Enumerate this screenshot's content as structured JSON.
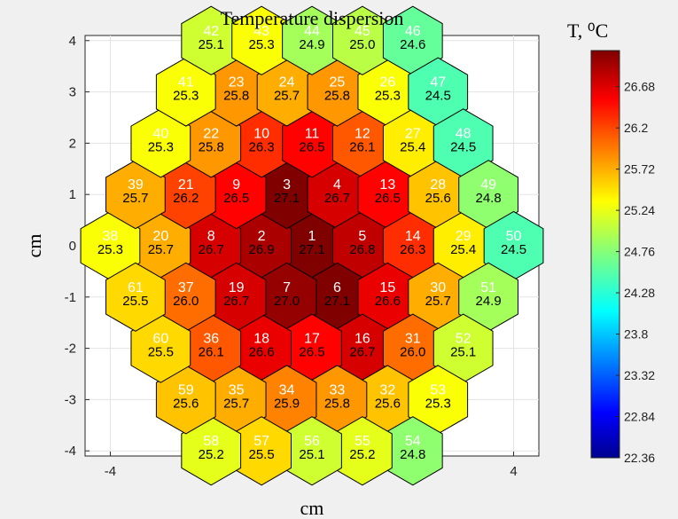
{
  "chart_data": {
    "type": "heatmap",
    "title": "Temperature dispersion",
    "xlabel": "cm",
    "ylabel": "cm",
    "xlim": [
      -4.5,
      4.5
    ],
    "ylim": [
      -4.1,
      4.1
    ],
    "xticks": [
      -4,
      -2,
      0,
      2,
      4
    ],
    "yticks": [
      -4,
      -3,
      -2,
      -1,
      0,
      1,
      2,
      3,
      4
    ],
    "grid": true,
    "colorbar": {
      "title": "T, ⁰C",
      "min": 22.36,
      "max": 27.1,
      "ticks": [
        "22.36",
        "22.84",
        "23.32",
        "23.8",
        "24.28",
        "24.76",
        "25.24",
        "25.72",
        "26.2",
        "26.68"
      ],
      "colormap": "jet"
    },
    "cells": [
      {
        "id": "1",
        "x": 0,
        "y": 0,
        "value": "27.1"
      },
      {
        "id": "2",
        "x": -1,
        "y": 0,
        "value": "26.9"
      },
      {
        "id": "3",
        "x": -0.5,
        "y": 1,
        "value": "27.1"
      },
      {
        "id": "4",
        "x": 0.5,
        "y": 1,
        "value": "26.7"
      },
      {
        "id": "5",
        "x": 1,
        "y": 0,
        "value": "26.8"
      },
      {
        "id": "6",
        "x": 0.5,
        "y": -1,
        "value": "27.1"
      },
      {
        "id": "7",
        "x": -0.5,
        "y": -1,
        "value": "27.0"
      },
      {
        "id": "8",
        "x": -2,
        "y": 0,
        "value": "26.7"
      },
      {
        "id": "9",
        "x": -1.5,
        "y": 1,
        "value": "26.5"
      },
      {
        "id": "10",
        "x": -1,
        "y": 2,
        "value": "26.3"
      },
      {
        "id": "11",
        "x": 0,
        "y": 2,
        "value": "26.5"
      },
      {
        "id": "12",
        "x": 1,
        "y": 2,
        "value": "26.1"
      },
      {
        "id": "13",
        "x": 1.5,
        "y": 1,
        "value": "26.5"
      },
      {
        "id": "14",
        "x": 2,
        "y": 0,
        "value": "26.3"
      },
      {
        "id": "15",
        "x": 1.5,
        "y": -1,
        "value": "26.6"
      },
      {
        "id": "16",
        "x": 1,
        "y": -2,
        "value": "26.7"
      },
      {
        "id": "17",
        "x": 0,
        "y": -2,
        "value": "26.5"
      },
      {
        "id": "18",
        "x": -1,
        "y": -2,
        "value": "26.6"
      },
      {
        "id": "19",
        "x": -1.5,
        "y": -1,
        "value": "26.7"
      },
      {
        "id": "20",
        "x": -3,
        "y": 0,
        "value": "25.7"
      },
      {
        "id": "21",
        "x": -2.5,
        "y": 1,
        "value": "26.2"
      },
      {
        "id": "22",
        "x": -2,
        "y": 2,
        "value": "25.8"
      },
      {
        "id": "23",
        "x": -1.5,
        "y": 3,
        "value": "25.8"
      },
      {
        "id": "24",
        "x": -0.5,
        "y": 3,
        "value": "25.7"
      },
      {
        "id": "25",
        "x": 0.5,
        "y": 3,
        "value": "25.8"
      },
      {
        "id": "26",
        "x": 1.5,
        "y": 3,
        "value": "25.3"
      },
      {
        "id": "27",
        "x": 2,
        "y": 2,
        "value": "25.4"
      },
      {
        "id": "28",
        "x": 2.5,
        "y": 1,
        "value": "25.6"
      },
      {
        "id": "29",
        "x": 3,
        "y": 0,
        "value": "25.4"
      },
      {
        "id": "30",
        "x": 2.5,
        "y": -1,
        "value": "25.7"
      },
      {
        "id": "31",
        "x": 2,
        "y": -2,
        "value": "26.0"
      },
      {
        "id": "32",
        "x": 1.5,
        "y": -3,
        "value": "25.6"
      },
      {
        "id": "33",
        "x": 0.5,
        "y": -3,
        "value": "25.8"
      },
      {
        "id": "34",
        "x": -0.5,
        "y": -3,
        "value": "25.9"
      },
      {
        "id": "35",
        "x": -1.5,
        "y": -3,
        "value": "25.7"
      },
      {
        "id": "36",
        "x": -2,
        "y": -2,
        "value": "26.1"
      },
      {
        "id": "37",
        "x": -2.5,
        "y": -1,
        "value": "26.0"
      },
      {
        "id": "38",
        "x": -4,
        "y": 0,
        "value": "25.3"
      },
      {
        "id": "39",
        "x": -3.5,
        "y": 1,
        "value": "25.7"
      },
      {
        "id": "40",
        "x": -3,
        "y": 2,
        "value": "25.3"
      },
      {
        "id": "41",
        "x": -2.5,
        "y": 3,
        "value": "25.3"
      },
      {
        "id": "42",
        "x": -2,
        "y": 4,
        "value": "25.1"
      },
      {
        "id": "43",
        "x": -1,
        "y": 4,
        "value": "25.3"
      },
      {
        "id": "44",
        "x": 0,
        "y": 4,
        "value": "24.9"
      },
      {
        "id": "45",
        "x": 1,
        "y": 4,
        "value": "25.0"
      },
      {
        "id": "46",
        "x": 2,
        "y": 4,
        "value": "24.6"
      },
      {
        "id": "47",
        "x": 2.5,
        "y": 3,
        "value": "24.5"
      },
      {
        "id": "48",
        "x": 3,
        "y": 2,
        "value": "24.5"
      },
      {
        "id": "49",
        "x": 3.5,
        "y": 1,
        "value": "24.8"
      },
      {
        "id": "50",
        "x": 4,
        "y": 0,
        "value": "24.5"
      },
      {
        "id": "51",
        "x": 3.5,
        "y": -1,
        "value": "24.9"
      },
      {
        "id": "52",
        "x": 3,
        "y": -2,
        "value": "25.1"
      },
      {
        "id": "53",
        "x": 2.5,
        "y": -3,
        "value": "25.3"
      },
      {
        "id": "54",
        "x": 2,
        "y": -4,
        "value": "24.8"
      },
      {
        "id": "55",
        "x": 1,
        "y": -4,
        "value": "25.2"
      },
      {
        "id": "56",
        "x": 0,
        "y": -4,
        "value": "25.1"
      },
      {
        "id": "57",
        "x": -1,
        "y": -4,
        "value": "25.5"
      },
      {
        "id": "58",
        "x": -2,
        "y": -4,
        "value": "25.2"
      },
      {
        "id": "59",
        "x": -2.5,
        "y": -3,
        "value": "25.6"
      },
      {
        "id": "60",
        "x": -3,
        "y": -2,
        "value": "25.5"
      },
      {
        "id": "61",
        "x": -3.5,
        "y": -1,
        "value": "25.5"
      }
    ]
  }
}
